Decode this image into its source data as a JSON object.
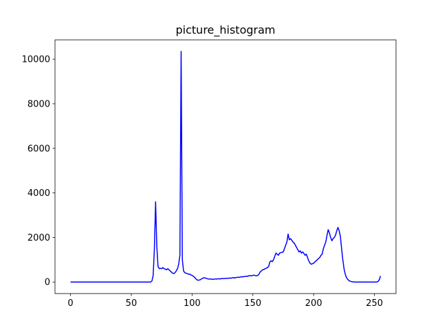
{
  "chart_data": {
    "type": "line",
    "title": "picture_histogram",
    "x": [
      0,
      1,
      2,
      3,
      4,
      5,
      6,
      7,
      8,
      9,
      10,
      11,
      12,
      13,
      14,
      15,
      16,
      17,
      18,
      19,
      20,
      21,
      22,
      23,
      24,
      25,
      26,
      27,
      28,
      29,
      30,
      31,
      32,
      33,
      34,
      35,
      36,
      37,
      38,
      39,
      40,
      41,
      42,
      43,
      44,
      45,
      46,
      47,
      48,
      49,
      50,
      51,
      52,
      53,
      54,
      55,
      56,
      57,
      58,
      59,
      60,
      61,
      62,
      63,
      64,
      65,
      66,
      67,
      68,
      69,
      70,
      71,
      72,
      73,
      74,
      75,
      76,
      77,
      78,
      79,
      80,
      81,
      82,
      83,
      84,
      85,
      86,
      87,
      88,
      89,
      90,
      91,
      92,
      93,
      94,
      95,
      96,
      97,
      98,
      99,
      100,
      101,
      102,
      103,
      104,
      105,
      106,
      107,
      108,
      109,
      110,
      111,
      112,
      113,
      114,
      115,
      116,
      117,
      118,
      119,
      120,
      121,
      122,
      123,
      124,
      125,
      126,
      127,
      128,
      129,
      130,
      131,
      132,
      133,
      134,
      135,
      136,
      137,
      138,
      139,
      140,
      141,
      142,
      143,
      144,
      145,
      146,
      147,
      148,
      149,
      150,
      151,
      152,
      153,
      154,
      155,
      156,
      157,
      158,
      159,
      160,
      161,
      162,
      163,
      164,
      165,
      166,
      167,
      168,
      169,
      170,
      171,
      172,
      173,
      174,
      175,
      176,
      177,
      178,
      179,
      180,
      181,
      182,
      183,
      184,
      185,
      186,
      187,
      188,
      189,
      190,
      191,
      192,
      193,
      194,
      195,
      196,
      197,
      198,
      199,
      200,
      201,
      202,
      203,
      204,
      205,
      206,
      207,
      208,
      209,
      210,
      211,
      212,
      213,
      214,
      215,
      216,
      217,
      218,
      219,
      220,
      221,
      222,
      223,
      224,
      225,
      226,
      227,
      228,
      229,
      230,
      231,
      232,
      233,
      234,
      235,
      236,
      237,
      238,
      239,
      240,
      241,
      242,
      243,
      244,
      245,
      246,
      247,
      248,
      249,
      250,
      251,
      252,
      253,
      254,
      255
    ],
    "series": [
      {
        "color": "#0000ff",
        "values": [
          0,
          0,
          0,
          0,
          0,
          0,
          0,
          0,
          0,
          0,
          0,
          0,
          0,
          0,
          0,
          0,
          0,
          0,
          0,
          0,
          0,
          0,
          0,
          0,
          0,
          0,
          0,
          0,
          0,
          0,
          0,
          0,
          0,
          0,
          0,
          0,
          0,
          0,
          0,
          0,
          0,
          0,
          0,
          0,
          0,
          0,
          0,
          0,
          0,
          0,
          0,
          0,
          0,
          0,
          0,
          0,
          0,
          0,
          0,
          0,
          0,
          0,
          0,
          0,
          0,
          0,
          0,
          50,
          300,
          1500,
          3600,
          1600,
          700,
          600,
          620,
          600,
          650,
          600,
          580,
          550,
          600,
          550,
          500,
          450,
          400,
          380,
          420,
          500,
          600,
          800,
          1200,
          10350,
          1000,
          500,
          420,
          400,
          380,
          350,
          360,
          320,
          300,
          260,
          220,
          150,
          100,
          80,
          90,
          110,
          150,
          180,
          190,
          180,
          160,
          140,
          130,
          140,
          130,
          120,
          130,
          140,
          130,
          140,
          150,
          140,
          150,
          160,
          150,
          160,
          170,
          160,
          170,
          180,
          170,
          190,
          200,
          180,
          200,
          210,
          220,
          210,
          230,
          240,
          230,
          250,
          260,
          250,
          270,
          280,
          290,
          280,
          300,
          310,
          290,
          280,
          300,
          350,
          450,
          500,
          550,
          560,
          600,
          620,
          650,
          700,
          900,
          950,
          920,
          1000,
          1150,
          1300,
          1250,
          1200,
          1300,
          1320,
          1330,
          1350,
          1500,
          1650,
          1800,
          2150,
          1900,
          1950,
          1880,
          1800,
          1750,
          1650,
          1550,
          1450,
          1350,
          1400,
          1300,
          1350,
          1280,
          1200,
          1250,
          1100,
          950,
          850,
          800,
          820,
          850,
          900,
          950,
          1000,
          1050,
          1100,
          1200,
          1250,
          1500,
          1650,
          1800,
          2100,
          2350,
          2200,
          2000,
          1850,
          1950,
          2000,
          2100,
          2300,
          2450,
          2300,
          2050,
          1500,
          1000,
          600,
          350,
          200,
          120,
          70,
          40,
          20,
          10,
          5,
          0,
          0,
          0,
          0,
          0,
          0,
          0,
          0,
          0,
          0,
          0,
          0,
          0,
          0,
          0,
          0,
          0,
          0,
          0,
          30,
          100,
          270
        ]
      }
    ],
    "xlim": [
      -12.75,
      267.75
    ],
    "ylim": [
      -517,
      10867
    ],
    "xticks": [
      0,
      50,
      100,
      150,
      200,
      250
    ],
    "yticks": [
      0,
      2000,
      4000,
      6000,
      8000,
      10000
    ]
  }
}
